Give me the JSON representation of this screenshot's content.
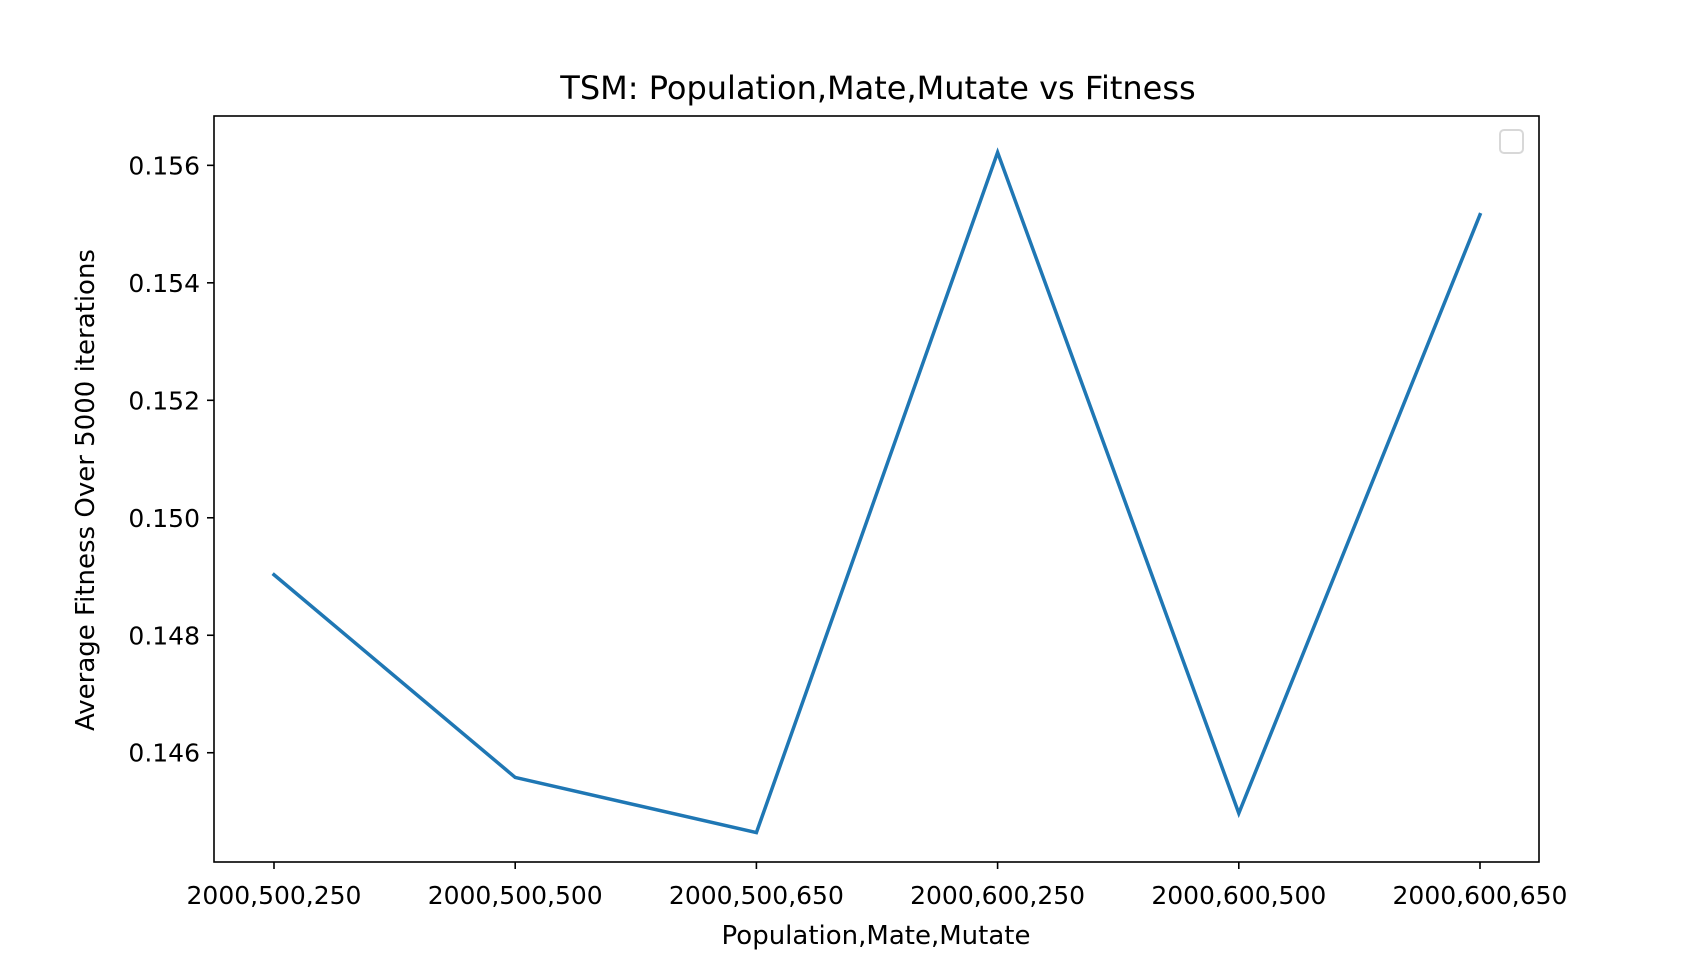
{
  "chart_data": {
    "type": "line",
    "title": "TSM: Population,Mate,Mutate vs Fitness",
    "xlabel": "Population,Mate,Mutate",
    "ylabel": "Average Fitness Over 5000 iterations",
    "categories": [
      "2000,500,250",
      "2000,500,500",
      "2000,500,650",
      "2000,600,250",
      "2000,600,500",
      "2000,600,650"
    ],
    "series": [
      {
        "values": [
          0.14903,
          0.14558,
          0.14464,
          0.15622,
          0.14497,
          0.15516
        ],
        "color": "#1f77b4"
      }
    ],
    "ylim": [
      0.14414,
      0.15684
    ],
    "yticks": [
      0.146,
      0.148,
      0.15,
      0.152,
      0.154,
      0.156
    ],
    "ytick_labels": [
      "0.146",
      "0.148",
      "0.150",
      "0.152",
      "0.154",
      "0.156"
    ],
    "grid": false,
    "legend": {
      "position": "top-right",
      "entries": []
    }
  }
}
